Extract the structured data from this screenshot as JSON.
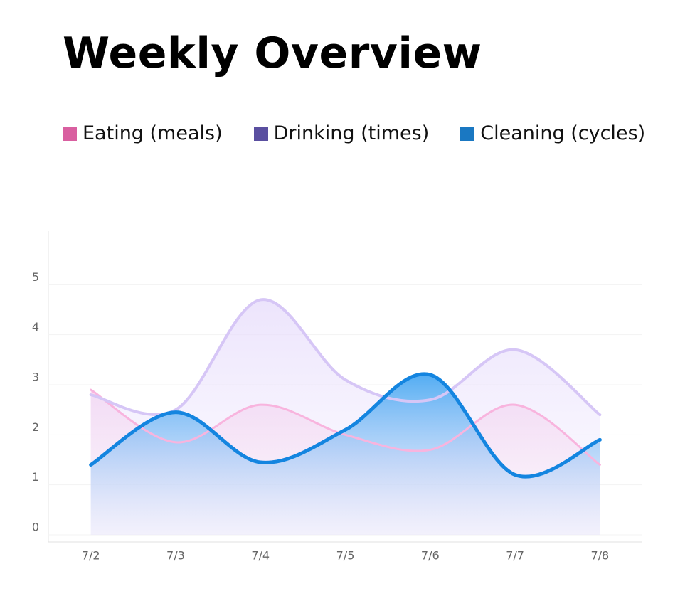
{
  "chart_data": {
    "type": "line",
    "title": "Weekly Overview",
    "categories": [
      "7/2",
      "7/3",
      "7/4",
      "7/5",
      "7/6",
      "7/7",
      "7/8"
    ],
    "series": [
      {
        "name": "Eating (meals)",
        "color": "#d95fa0",
        "values": [
          2.9,
          1.85,
          2.6,
          2.0,
          1.7,
          2.6,
          1.4
        ]
      },
      {
        "name": "Drinking (times)",
        "color": "#5a4fa0",
        "values": [
          2.8,
          2.5,
          4.7,
          3.1,
          2.7,
          3.7,
          2.4
        ]
      },
      {
        "name": "Cleaning (cycles)",
        "color": "#1a78c2",
        "values": [
          1.4,
          2.45,
          1.45,
          2.1,
          3.2,
          1.2,
          1.9
        ]
      }
    ],
    "ylim": [
      0,
      6
    ],
    "yticks": [
      0,
      1,
      2,
      3,
      4,
      5
    ],
    "grid": true
  }
}
